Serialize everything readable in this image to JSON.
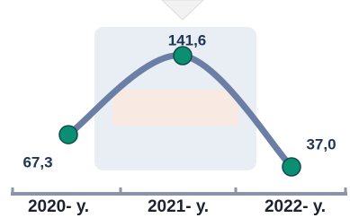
{
  "chart_data": {
    "type": "line",
    "categories": [
      "2020- у.",
      "2021- у.",
      "2022- у."
    ],
    "series": [
      {
        "color": "#6b7fa6",
        "values": [
          67.3,
          141.6,
          37.0
        ],
        "value_labels": [
          "67,3",
          "141,6",
          "37,0"
        ]
      }
    ]
  }
}
